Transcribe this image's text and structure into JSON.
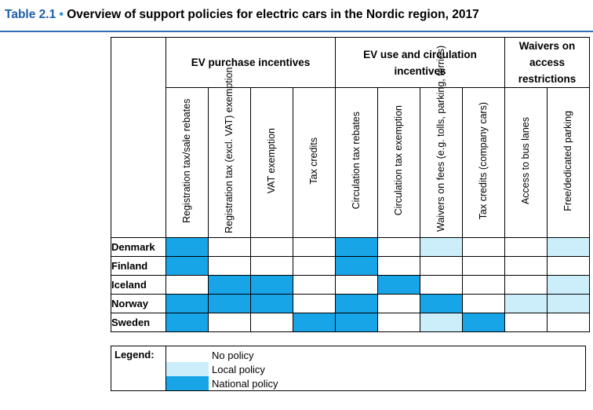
{
  "title": {
    "number": "Table 2.1",
    "bullet": "•",
    "text": "Overview of support policies for electric cars in the Nordic region, 2017"
  },
  "groups": [
    {
      "label": "EV purchase incentives"
    },
    {
      "label": "EV use and circulation incentives"
    },
    {
      "label": "Waivers on access restrictions"
    }
  ],
  "columns": [
    "Registration tax/sale rebates",
    "Registration tax (excl. VAT) exemption",
    "VAT exemption",
    "Tax credits",
    "Circulation tax rebates",
    "Circulation tax exemption",
    "Waivers on fees (e.g. tolls, parking, ferries)",
    "Tax credits (company cars)",
    "Access to bus lanes",
    "Free/dedicated parking"
  ],
  "rows": [
    {
      "country": "Denmark",
      "cells": [
        "national",
        "none",
        "none",
        "none",
        "national",
        "none",
        "local",
        "none",
        "none",
        "local"
      ]
    },
    {
      "country": "Finland",
      "cells": [
        "national",
        "none",
        "none",
        "none",
        "national",
        "none",
        "none",
        "none",
        "none",
        "none"
      ]
    },
    {
      "country": "Iceland",
      "cells": [
        "none",
        "national",
        "national",
        "none",
        "none",
        "national",
        "none",
        "none",
        "none",
        "local"
      ]
    },
    {
      "country": "Norway",
      "cells": [
        "national",
        "national",
        "national",
        "none",
        "national",
        "none",
        "national",
        "none",
        "local",
        "local"
      ]
    },
    {
      "country": "Sweden",
      "cells": [
        "national",
        "none",
        "none",
        "national",
        "national",
        "none",
        "local",
        "national",
        "none",
        "none"
      ]
    }
  ],
  "legend": {
    "label": "Legend:",
    "items": [
      {
        "key": "none",
        "label": "No policy"
      },
      {
        "key": "local",
        "label": "Local policy"
      },
      {
        "key": "national",
        "label": "National policy"
      }
    ]
  },
  "colors": {
    "national": "#17a5e8",
    "local": "#cceefb",
    "none": "#ffffff"
  }
}
